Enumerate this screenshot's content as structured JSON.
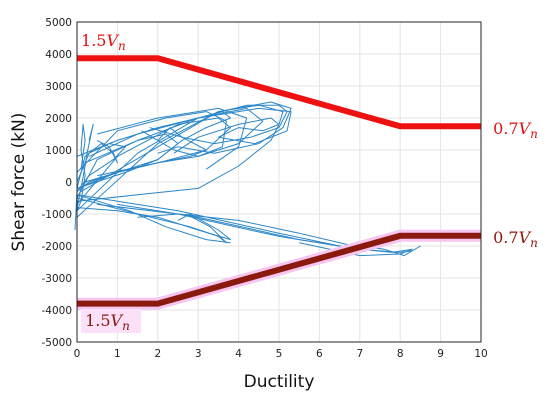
{
  "chart_data": {
    "type": "line",
    "title": "",
    "xlabel": "Ductility",
    "ylabel": "Shear force (kN)",
    "xlim": [
      0,
      10
    ],
    "ylim": [
      -5000,
      5000
    ],
    "xticks": [
      0,
      1,
      2,
      3,
      4,
      5,
      6,
      7,
      8,
      9,
      10
    ],
    "yticks": [
      -5000,
      -4000,
      -3000,
      -2000,
      -1000,
      0,
      1000,
      2000,
      3000,
      4000,
      5000
    ],
    "grid": true,
    "legend": "none",
    "colors": {
      "upper_envelope": "#ee1111",
      "lower_envelope": "#8b1a0e",
      "lower_halo": "#f7c6f0",
      "hysteresis": "#2a86c8",
      "upper_text": "#e31212",
      "lower_text": "#8b1a0e"
    },
    "envelopes": [
      {
        "id": "upper",
        "x": [
          0,
          2,
          8,
          10
        ],
        "y": [
          3870,
          3870,
          1740,
          1740
        ]
      },
      {
        "id": "lower",
        "x": [
          0,
          2,
          8,
          10
        ],
        "y": [
          -3800,
          -3800,
          -1680,
          -1680
        ]
      }
    ],
    "annotations": [
      {
        "id": "upper-left",
        "coef": "1.5",
        "symbol": "V",
        "sub": "n",
        "x": 0.1,
        "y": 4250
      },
      {
        "id": "upper-right",
        "coef": "0.7",
        "symbol": "V",
        "sub": "n",
        "x": 10.3,
        "y": 1500
      },
      {
        "id": "lower-left",
        "coef": "1.5",
        "symbol": "V",
        "sub": "n",
        "x": 0.2,
        "y": -4500
      },
      {
        "id": "lower-right",
        "coef": "0.7",
        "symbol": "V",
        "sub": "n",
        "x": 10.3,
        "y": -1900
      }
    ],
    "hysteresis": [
      {
        "x": [
          0,
          0.3,
          0.8,
          1.2,
          0.9,
          0.3,
          0,
          -0.05
        ],
        "y": [
          0,
          900,
          1200,
          1100,
          700,
          200,
          -300,
          -1500
        ]
      },
      {
        "x": [
          0,
          0.5,
          1.5,
          2.2,
          2.5,
          2.0,
          1.0,
          0.3,
          0
        ],
        "y": [
          -500,
          700,
          1300,
          1500,
          1200,
          700,
          300,
          0,
          -300
        ]
      },
      {
        "x": [
          0,
          1.0,
          2.5,
          3.5,
          3.8,
          3.2,
          2.0,
          1.0,
          0.2
        ],
        "y": [
          -700,
          800,
          1800,
          2000,
          1700,
          1000,
          600,
          300,
          0
        ]
      },
      {
        "x": [
          0,
          1.5,
          3.0,
          4.2,
          4.6,
          4.0,
          3.0,
          2.0,
          0.5
        ],
        "y": [
          -900,
          900,
          2000,
          2300,
          1900,
          1200,
          800,
          600,
          200
        ]
      },
      {
        "x": [
          0,
          2.0,
          3.5,
          4.8,
          5.3,
          5.1,
          4.5,
          3.4,
          2.5,
          2.0
        ],
        "y": [
          -1100,
          1200,
          2200,
          2500,
          2300,
          1700,
          1200,
          900,
          1100,
          900
        ]
      },
      {
        "x": [
          0.1,
          2.0,
          3.5,
          4.5,
          5.1,
          5.0,
          4.6,
          4.0,
          3.5
        ],
        "y": [
          -300,
          1100,
          2200,
          2400,
          2200,
          1800,
          1600,
          1700,
          1400
        ]
      },
      {
        "x": [
          0.2,
          1.5,
          3.0,
          4.2,
          5.0,
          5.2,
          5.0,
          4.3,
          3.4,
          2.6,
          2.3,
          2.0
        ],
        "y": [
          600,
          1300,
          2000,
          2400,
          2400,
          2200,
          1700,
          1400,
          1200,
          1400,
          1700,
          1300
        ]
      },
      {
        "x": [
          0.3,
          1.5,
          3.0,
          4.5,
          5.3,
          5.2,
          4.4,
          3.5
        ],
        "y": [
          800,
          1500,
          2000,
          2300,
          2200,
          1600,
          1200,
          1400
        ]
      },
      {
        "x": [
          0,
          1.0,
          2.2,
          3.2,
          3.7,
          3.6,
          3.0,
          2.4,
          1.6
        ],
        "y": [
          300,
          1600,
          2000,
          2200,
          1900,
          1100,
          800,
          1000,
          1600
        ]
      },
      {
        "x": [
          0.5,
          2.0,
          3.5,
          4.2,
          4.0,
          3.2
        ],
        "y": [
          1500,
          2000,
          2300,
          2000,
          1100,
          400
        ]
      },
      {
        "x": [
          0,
          1.0,
          2.0,
          2.8,
          3.2,
          2.6,
          1.8
        ],
        "y": [
          -200,
          300,
          600,
          800,
          1000,
          1400,
          1700
        ]
      },
      {
        "x": [
          0,
          1.5,
          3.0,
          4.0,
          4.8,
          5.0,
          4.8,
          4.0,
          3.0,
          2.4
        ],
        "y": [
          -600,
          -400,
          -200,
          500,
          1300,
          1800,
          2000,
          1800,
          1400,
          900
        ]
      },
      {
        "x": [
          0,
          1.2,
          2.0,
          2.6,
          3.2,
          3.8,
          3.6,
          3.0,
          2.0,
          1.0,
          0
        ],
        "y": [
          -200,
          300,
          700,
          1300,
          1700,
          2000,
          2200,
          2000,
          1700,
          1300,
          800
        ]
      },
      {
        "x": [
          0,
          1.0,
          2.0,
          3.0,
          3.8,
          3.5,
          2.8,
          2.5
        ],
        "y": [
          -800,
          -900,
          -1100,
          -1500,
          -1800,
          -1500,
          -1000,
          -1200
        ]
      },
      {
        "x": [
          0,
          1.5,
          2.8,
          3.5,
          3.7,
          3.3,
          2.7
        ],
        "y": [
          -500,
          -1000,
          -1400,
          -1700,
          -1900,
          -1400,
          -1000
        ]
      },
      {
        "x": [
          0,
          1.3,
          2.2,
          3.2,
          3.8
        ],
        "y": [
          -400,
          -900,
          -1400,
          -1800,
          -1900
        ]
      },
      {
        "x": [
          0,
          2.5,
          5.0,
          6.5,
          7.2,
          6.5,
          5.5,
          4.0,
          2.5,
          1.5
        ],
        "y": [
          -400,
          -900,
          -1600,
          -2000,
          -2100,
          -1900,
          -1600,
          -1200,
          -1000,
          -1100
        ]
      },
      {
        "x": [
          0.5,
          2.5,
          5.0,
          7.0,
          8.0,
          8.3,
          8.5,
          8.3,
          8.1,
          7.6,
          7.0,
          6.5
        ],
        "y": [
          -700,
          -1000,
          -1700,
          -2100,
          -2200,
          -2150,
          -2000,
          -2150,
          -2300,
          -2100,
          -2000,
          -2200
        ]
      },
      {
        "x": [
          1.0,
          3.0,
          5.5,
          7.0,
          7.8,
          8.3,
          8.0,
          7.0,
          5.5
        ],
        "y": [
          -700,
          -1100,
          -1800,
          -2100,
          -2200,
          -2100,
          -2250,
          -2300,
          -1900
        ]
      },
      {
        "x": [
          0.1,
          0.2,
          0.15,
          0.1,
          0.2,
          0.1,
          0
        ],
        "y": [
          400,
          1300,
          1800,
          1000,
          200,
          -600,
          -900
        ]
      },
      {
        "x": [
          0.3,
          0.4,
          0.35,
          0.25,
          0.2,
          0.1,
          0
        ],
        "y": [
          1300,
          1800,
          1500,
          900,
          500,
          -200,
          -800
        ]
      },
      {
        "x": [
          0,
          0.2,
          0.6,
          0.9,
          1.0,
          0.8,
          0.5
        ],
        "y": [
          -200,
          800,
          1200,
          900,
          600,
          1100,
          1300
        ]
      }
    ]
  }
}
